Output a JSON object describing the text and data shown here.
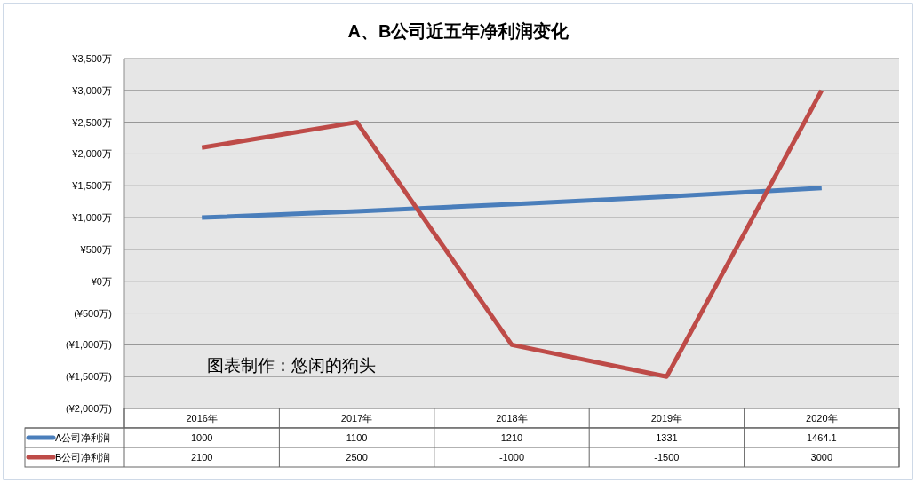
{
  "chart_data": {
    "type": "line",
    "title": "A、B公司近五年净利润变化",
    "categories": [
      "2016年",
      "2017年",
      "2018年",
      "2019年",
      "2020年"
    ],
    "series": [
      {
        "name": "A公司净利润",
        "color": "#4a7ebb",
        "values": [
          1000,
          1100,
          1210,
          1331,
          1464.1
        ]
      },
      {
        "name": "B公司净利润",
        "color": "#be4b48",
        "values": [
          2100,
          2500,
          -1000,
          -1500,
          3000
        ]
      }
    ],
    "ylim": [
      -2000,
      3500
    ],
    "yticks": [
      {
        "value": -2000,
        "label": "(¥2,000万)"
      },
      {
        "value": -1500,
        "label": "(¥1,500万)"
      },
      {
        "value": -1000,
        "label": "(¥1,000万)"
      },
      {
        "value": -500,
        "label": "(¥500万)"
      },
      {
        "value": 0,
        "label": "¥0万"
      },
      {
        "value": 500,
        "label": "¥500万"
      },
      {
        "value": 1000,
        "label": "¥1,000万"
      },
      {
        "value": 1500,
        "label": "¥1,500万"
      },
      {
        "value": 2000,
        "label": "¥2,000万"
      },
      {
        "value": 2500,
        "label": "¥2,500万"
      },
      {
        "value": 3000,
        "label": "¥3,000万"
      },
      {
        "value": 3500,
        "label": "¥3,500万"
      }
    ],
    "grid": "y",
    "legend": "bottom",
    "marker": "none",
    "line_style": "solid",
    "data_labels": true,
    "annotations": [
      "图表制作：悠闲的狗头"
    ]
  }
}
